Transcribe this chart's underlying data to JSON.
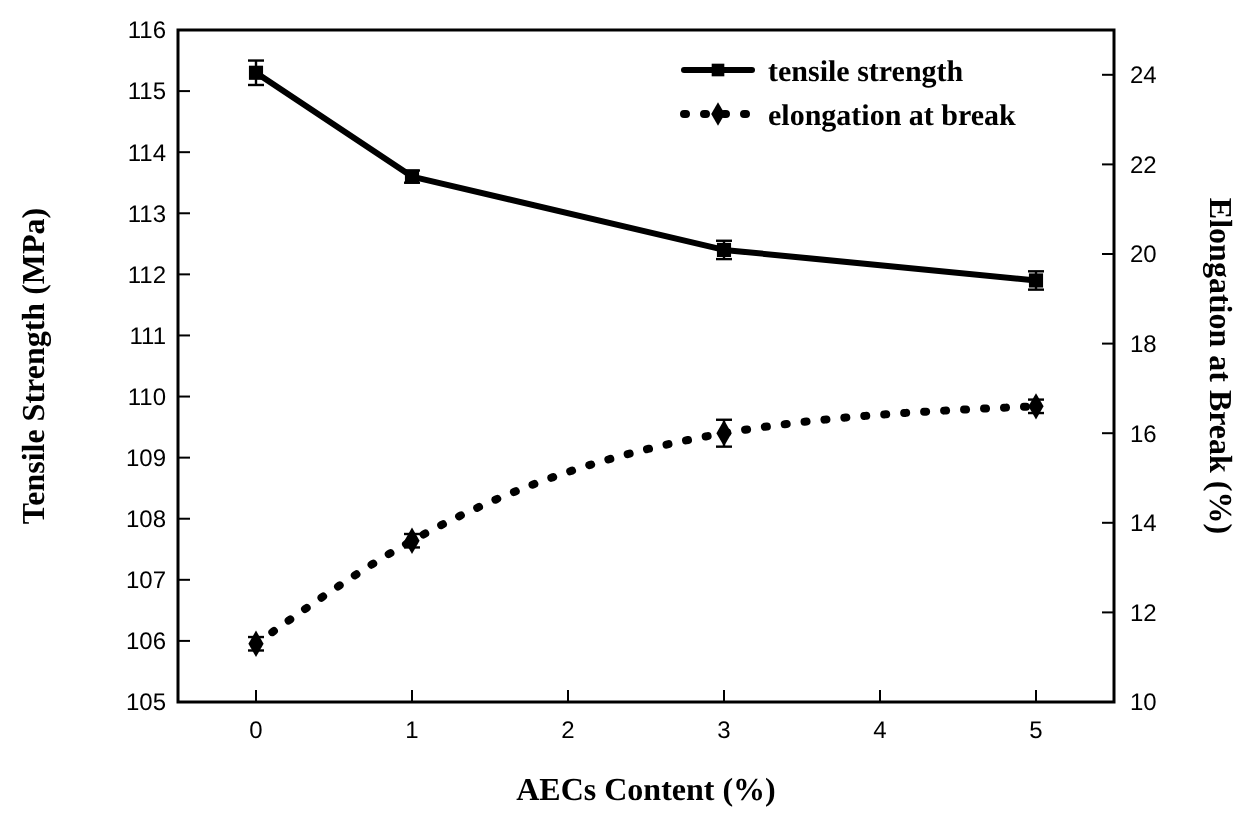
{
  "chart_data": {
    "type": "line",
    "xlabel": "AECs Content (%)",
    "ylabel": "Tensile Strength (MPa)",
    "y2label": "Elongation at Break (%)",
    "x": [
      0,
      1,
      3,
      5
    ],
    "xlim": [
      -0.5,
      5.5
    ],
    "xticks": [
      0,
      1,
      2,
      3,
      4,
      5
    ],
    "ylim": [
      105,
      116
    ],
    "yticks": [
      105,
      106,
      107,
      108,
      109,
      110,
      111,
      112,
      113,
      114,
      115,
      116
    ],
    "y2lim": [
      10,
      25
    ],
    "y2ticks": [
      10,
      12,
      14,
      16,
      18,
      20,
      22,
      24
    ],
    "series": [
      {
        "name": "tensile strength",
        "color": "#000000",
        "values": [
          115.3,
          113.6,
          112.4,
          111.9
        ],
        "errors": [
          0.2,
          0.1,
          0.15,
          0.15
        ],
        "marker": "square",
        "line_style": "solid"
      },
      {
        "name": "elongation at break",
        "color": "#000000",
        "values": [
          11.3,
          13.6,
          16.0,
          16.6
        ],
        "errors": [
          0.15,
          0.15,
          0.3,
          0.15
        ],
        "marker": "diamond",
        "line_style": "dotted",
        "axis": "y2"
      }
    ],
    "legend": "top right",
    "grid": false
  }
}
